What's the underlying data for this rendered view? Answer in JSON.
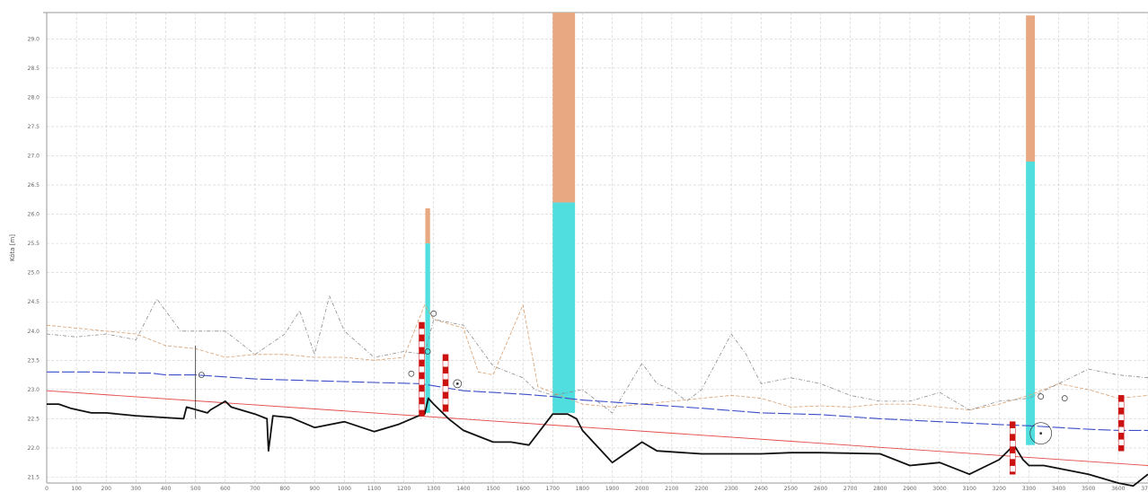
{
  "chart_data": {
    "type": "line",
    "title": "",
    "xlabel": "",
    "ylabel": "Kóta [m]",
    "xlim": [
      0,
      3700
    ],
    "ylim": [
      21.4,
      29.45
    ],
    "grid": true,
    "y_ticks": [
      "29.0",
      "28.5",
      "28.0",
      "27.5",
      "27.0",
      "26.5",
      "26.0",
      "25.5",
      "25.0",
      "24.5",
      "24.0",
      "23.5",
      "23.0",
      "22.5",
      "22.0",
      "21.5"
    ],
    "x_ticks": [
      "0",
      "100",
      "200",
      "300",
      "400",
      "500",
      "600",
      "700",
      "800",
      "900",
      "1000",
      "1100",
      "1200",
      "1300",
      "1400",
      "1500",
      "1600",
      "1700",
      "1800",
      "1900",
      "2000",
      "2100",
      "2200",
      "2300",
      "2400",
      "2500",
      "2600",
      "2700",
      "2800",
      "2900",
      "3000",
      "3100",
      "3200",
      "3300",
      "3400",
      "3500",
      "3600",
      "3700"
    ],
    "colors": {
      "bed": "#111111",
      "water_level": "#3c4ec8",
      "design_level": "#e24a4a",
      "left_bank": "#8a8a8a",
      "right_bank": "#d9a070",
      "bridge_deck": "#e8a882",
      "bridge_opening": "#50dede",
      "pier_red": "#cc1111"
    },
    "series": [
      {
        "key": "bed",
        "x": [
          0,
          40,
          80,
          150,
          200,
          300,
          460,
          470,
          540,
          550,
          600,
          620,
          700,
          740,
          745,
          760,
          820,
          900,
          1000,
          1100,
          1180,
          1250,
          1270,
          1282,
          1300,
          1350,
          1400,
          1500,
          1560,
          1620,
          1700,
          1750,
          1780,
          1800,
          1900,
          2000,
          2050,
          2200,
          2300,
          2400,
          2500,
          2600,
          2800,
          2900,
          3000,
          3100,
          3200,
          3250,
          3280,
          3300,
          3350,
          3400,
          3500,
          3600,
          3650,
          3700
        ],
        "y": [
          22.75,
          22.75,
          22.68,
          22.6,
          22.6,
          22.55,
          22.5,
          22.7,
          22.6,
          22.65,
          22.8,
          22.7,
          22.58,
          22.5,
          21.95,
          22.55,
          22.52,
          22.35,
          22.45,
          22.28,
          22.4,
          22.55,
          22.58,
          22.85,
          22.75,
          22.5,
          22.3,
          22.1,
          22.1,
          22.05,
          22.58,
          22.58,
          22.5,
          22.3,
          21.75,
          22.1,
          21.95,
          21.9,
          21.9,
          21.9,
          21.92,
          21.92,
          21.9,
          21.7,
          21.75,
          21.55,
          21.8,
          22.05,
          21.8,
          21.7,
          21.7,
          21.65,
          21.55,
          21.4,
          21.35,
          21.55
        ]
      },
      {
        "key": "water_level",
        "x": [
          0,
          150,
          300,
          350,
          400,
          500,
          700,
          900,
          1100,
          1250,
          1280,
          1400,
          1500,
          1600,
          1700,
          1800,
          2000,
          2200,
          2400,
          2600,
          2800,
          3000,
          3200,
          3300,
          3400,
          3500,
          3600,
          3700
        ],
        "y": [
          23.3,
          23.3,
          23.28,
          23.28,
          23.25,
          23.25,
          23.18,
          23.15,
          23.12,
          23.1,
          23.08,
          22.98,
          22.95,
          22.92,
          22.88,
          22.82,
          22.75,
          22.68,
          22.6,
          22.57,
          22.5,
          22.45,
          22.4,
          22.38,
          22.35,
          22.32,
          22.3,
          22.3
        ]
      },
      {
        "key": "design_level",
        "x": [
          0,
          3700
        ],
        "y": [
          22.98,
          21.7
        ]
      },
      {
        "key": "left_bank",
        "x": [
          0,
          100,
          200,
          300,
          370,
          450,
          500,
          600,
          700,
          800,
          850,
          900,
          950,
          1000,
          1100,
          1200,
          1270,
          1300,
          1400,
          1500,
          1600,
          1640,
          1700,
          1800,
          1900,
          2000,
          2050,
          2100,
          2150,
          2200,
          2300,
          2350,
          2400,
          2500,
          2600,
          2700,
          2800,
          2900,
          3000,
          3100,
          3200,
          3300,
          3400,
          3500,
          3600,
          3700
        ],
        "y": [
          23.95,
          23.9,
          23.95,
          23.85,
          24.55,
          24.0,
          24.0,
          24.0,
          23.6,
          23.95,
          24.35,
          23.6,
          24.6,
          24.0,
          23.55,
          23.65,
          23.6,
          24.2,
          24.1,
          23.4,
          23.2,
          23.0,
          22.9,
          23.0,
          22.6,
          23.45,
          23.1,
          23.0,
          22.8,
          23.0,
          23.95,
          23.6,
          23.1,
          23.2,
          23.1,
          22.9,
          22.8,
          22.8,
          22.95,
          22.65,
          22.8,
          22.85,
          23.1,
          23.35,
          23.25,
          23.2
        ]
      },
      {
        "key": "right_bank",
        "x": [
          0,
          100,
          200,
          300,
          400,
          500,
          600,
          700,
          800,
          900,
          1000,
          1100,
          1200,
          1270,
          1300,
          1400,
          1450,
          1500,
          1600,
          1650,
          1700,
          1800,
          1900,
          2000,
          2100,
          2200,
          2300,
          2400,
          2500,
          2600,
          2700,
          2800,
          2900,
          3000,
          3100,
          3200,
          3300,
          3400,
          3500,
          3600,
          3700
        ],
        "y": [
          24.1,
          24.05,
          24.0,
          23.95,
          23.75,
          23.7,
          23.55,
          23.6,
          23.6,
          23.55,
          23.55,
          23.5,
          23.55,
          24.45,
          24.2,
          24.05,
          23.3,
          23.25,
          24.45,
          23.05,
          22.95,
          22.75,
          22.7,
          22.75,
          22.8,
          22.85,
          22.9,
          22.85,
          22.7,
          22.72,
          22.7,
          22.75,
          22.75,
          22.7,
          22.65,
          22.75,
          22.9,
          23.1,
          23.0,
          22.85,
          22.9
        ]
      }
    ],
    "bridges": [
      {
        "x_start": 1272,
        "x_end": 1288,
        "deck_top": 26.1,
        "opening_top": 25.5,
        "bottom": 22.6
      },
      {
        "x_start": 1700,
        "x_end": 1775,
        "deck_top": 29.45,
        "opening_top": 26.2,
        "bottom": 22.6
      },
      {
        "x_start": 3290,
        "x_end": 3320,
        "deck_top": 29.4,
        "opening_top": 26.9,
        "bottom": 22.05
      }
    ],
    "piers": [
      {
        "x": 1260,
        "y_bottom": 22.55,
        "y_top": 24.15
      },
      {
        "x": 1340,
        "y_bottom": 22.62,
        "y_top": 23.6
      },
      {
        "x": 3245,
        "y_bottom": 21.55,
        "y_top": 22.45
      },
      {
        "x": 3610,
        "y_bottom": 21.95,
        "y_top": 22.9
      }
    ],
    "markers": [
      {
        "x": 520,
        "y": 23.25,
        "r": 1
      },
      {
        "x": 1225,
        "y": 23.27,
        "r": 1
      },
      {
        "x": 1280,
        "y": 23.65,
        "r": 1
      },
      {
        "x": 1300,
        "y": 24.3,
        "r": 1
      },
      {
        "x": 1380,
        "y": 23.1,
        "r": 1.5
      },
      {
        "x": 3340,
        "y": 22.88,
        "r": 1
      },
      {
        "x": 3420,
        "y": 22.85,
        "r": 1
      },
      {
        "x": 3340,
        "y": 22.25,
        "r": 4
      }
    ],
    "culvert": {
      "x": 500,
      "y_top": 23.75,
      "y_bottom": 22.5
    }
  }
}
